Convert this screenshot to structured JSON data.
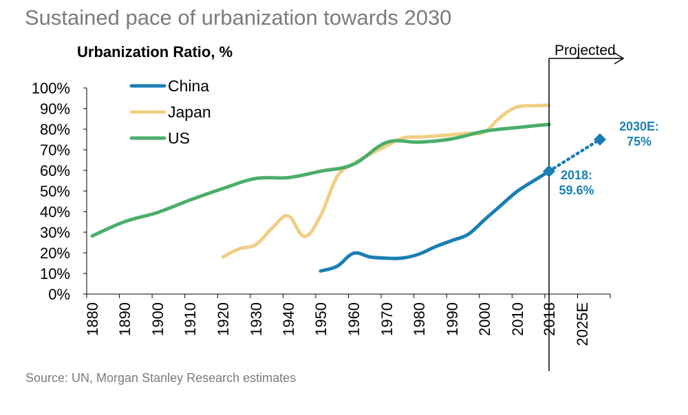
{
  "page": {
    "title": "Sustained pace of urbanization towards 2030",
    "source": "Source: UN, Morgan Stanley Research estimates"
  },
  "colors": {
    "china": "#1a7fb4",
    "japan": "#f0cf84",
    "us": "#4aae6a",
    "axis": "#000000",
    "text": "#000000",
    "subtle": "#7b7b7b"
  },
  "chart_data": {
    "type": "line",
    "title": "Urbanization Ratio, %",
    "xlabel": "",
    "ylabel": "Urbanization Ratio, %",
    "ylim": [
      0,
      100
    ],
    "xlim": [
      1880,
      2030
    ],
    "y_ticks": [
      0,
      10,
      20,
      30,
      40,
      50,
      60,
      70,
      80,
      90,
      100
    ],
    "y_tick_labels": [
      "0%",
      "10%",
      "20%",
      "30%",
      "40%",
      "50%",
      "60%",
      "70%",
      "80%",
      "90%",
      "100%"
    ],
    "x_tick_labels": [
      "1880",
      "1890",
      "1900",
      "1910",
      "1920",
      "1930",
      "1940",
      "1950",
      "1960",
      "1970",
      "1980",
      "1990",
      "2000",
      "2010",
      "2018",
      "2025E"
    ],
    "grid": false,
    "legend_position": "top-left",
    "projection_marker": {
      "x": 2018,
      "label": "Projected"
    },
    "series": [
      {
        "name": "China",
        "points": [
          [
            1950,
            11.2
          ],
          [
            1955,
            13.5
          ],
          [
            1960,
            19.8
          ],
          [
            1965,
            18
          ],
          [
            1970,
            17.4
          ],
          [
            1975,
            17.5
          ],
          [
            1980,
            19.4
          ],
          [
            1985,
            23
          ],
          [
            1990,
            26
          ],
          [
            1995,
            29
          ],
          [
            2000,
            36
          ],
          [
            2005,
            43
          ],
          [
            2010,
            49.9
          ],
          [
            2015,
            56
          ],
          [
            2018,
            59.6
          ]
        ],
        "projection": [
          [
            2018,
            59.6
          ],
          [
            2030,
            75
          ]
        ],
        "annotations": [
          {
            "x": 2018,
            "y": 59.6,
            "text_lines": [
              "2018:",
              "59.6%"
            ]
          },
          {
            "x": 2030,
            "y": 75,
            "text_lines": [
              "2030E:",
              "75%"
            ]
          }
        ]
      },
      {
        "name": "Japan",
        "points": [
          [
            1920,
            18
          ],
          [
            1925,
            22
          ],
          [
            1930,
            24
          ],
          [
            1935,
            32
          ],
          [
            1940,
            37.9
          ],
          [
            1945,
            28
          ],
          [
            1950,
            38
          ],
          [
            1955,
            57
          ],
          [
            1960,
            63.3
          ],
          [
            1965,
            67.9
          ],
          [
            1970,
            71.9
          ],
          [
            1975,
            75.7
          ],
          [
            1980,
            76.2
          ],
          [
            1985,
            76.7
          ],
          [
            1990,
            77.3
          ],
          [
            1995,
            78
          ],
          [
            2000,
            78.6
          ],
          [
            2005,
            86
          ],
          [
            2010,
            90.8
          ],
          [
            2015,
            91.4
          ],
          [
            2018,
            91.6
          ]
        ],
        "projection": [],
        "annotations": []
      },
      {
        "name": "US",
        "points": [
          [
            1880,
            28.2
          ],
          [
            1890,
            35.1
          ],
          [
            1900,
            39.6
          ],
          [
            1910,
            45.6
          ],
          [
            1920,
            51.2
          ],
          [
            1930,
            56.1
          ],
          [
            1940,
            56.5
          ],
          [
            1950,
            59.6
          ],
          [
            1960,
            63
          ],
          [
            1970,
            73.6
          ],
          [
            1980,
            73.7
          ],
          [
            1990,
            75.3
          ],
          [
            2000,
            79
          ],
          [
            2010,
            80.8
          ],
          [
            2018,
            82.3
          ]
        ],
        "projection": [],
        "annotations": []
      }
    ]
  }
}
